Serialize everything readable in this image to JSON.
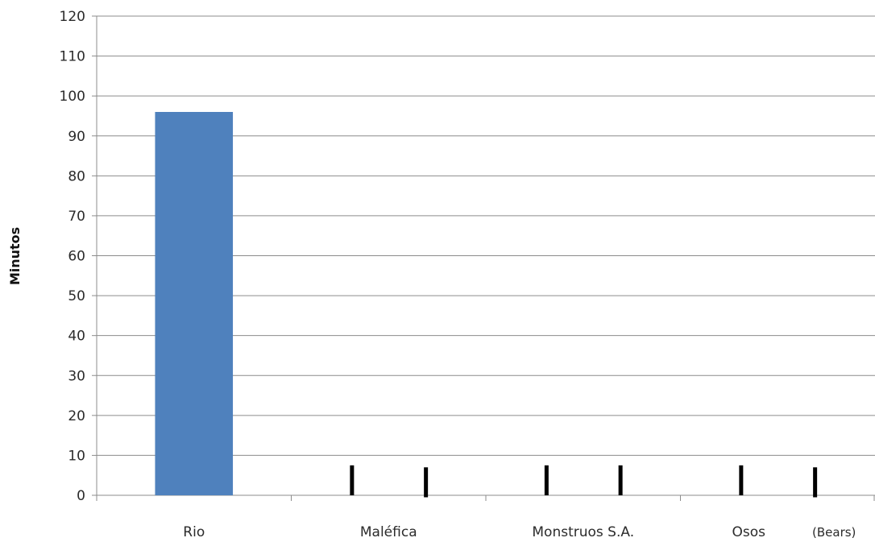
{
  "chart_data": {
    "type": "bar",
    "title": "",
    "xlabel": "",
    "ylabel": "Minutos",
    "ylim": [
      0,
      120
    ],
    "yticks": [
      0,
      10,
      20,
      30,
      40,
      50,
      60,
      70,
      80,
      90,
      100,
      110,
      120
    ],
    "grid": true,
    "legend": "none",
    "bar_color": "#4f81bd",
    "categories": [
      "Rio",
      "Maléfica",
      "Monstruos S.A.",
      "Osos"
    ],
    "values": [
      96,
      null,
      null,
      null
    ],
    "annotations": [
      {
        "text": "(Bears)",
        "near_category": "Osos"
      }
    ],
    "marker_color": "#000000",
    "markers": [
      {
        "category": "Maléfica",
        "y_top": 7.5,
        "y_bottom": 0
      },
      {
        "category": "Maléfica",
        "y_top": 7.0,
        "y_bottom": -0.5
      },
      {
        "category": "Monstruos S.A.",
        "y_top": 7.5,
        "y_bottom": 0
      },
      {
        "category": "Monstruos S.A.",
        "y_top": 7.5,
        "y_bottom": 0
      },
      {
        "category": "Osos",
        "y_top": 7.5,
        "y_bottom": 0
      },
      {
        "category": "Osos",
        "y_top": 7.0,
        "y_bottom": -0.5
      }
    ]
  }
}
